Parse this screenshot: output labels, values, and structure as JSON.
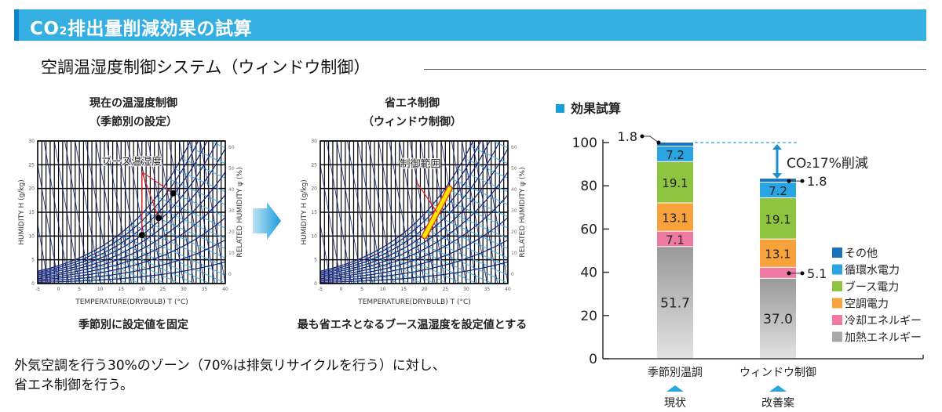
{
  "banner": {
    "title": "CO₂排出量削減効果の試算",
    "color": "#35afe2"
  },
  "subtitle": "空調温湿度制御システム（ウィンドウ制御）",
  "psychro_left": {
    "title_line1": "現在の温湿度制御",
    "title_line2": "（季節別の設定）",
    "annotation": "ブース温湿度",
    "caption": "季節別に設定値を固定",
    "xlabel": "TEMPERATURE(DRYBULB) T (°C)",
    "ylabel": "HUMIDITY H (g/kg)",
    "y2label": "RELATED HUMIDITY ψ (%)",
    "xticks": [
      "-5",
      "0",
      "5",
      "10",
      "15",
      "20",
      "25",
      "30",
      "35",
      "40"
    ],
    "yticks": [
      "0",
      "5",
      "10",
      "15",
      "20",
      "25",
      "30"
    ],
    "y2ticks": [
      "0",
      "10",
      "20",
      "30",
      "40",
      "50",
      "60"
    ],
    "points": [
      {
        "t": 20,
        "h": 10.2
      },
      {
        "t": 24,
        "h": 13.8
      },
      {
        "t": 27.5,
        "h": 19
      }
    ]
  },
  "psychro_right": {
    "title_line1": "省エネ制御",
    "title_line2": "（ウィンドウ制御）",
    "annotation": "制御範囲",
    "caption": "最も省エネとなるブース温湿度を設定値とする",
    "xlabel": "TEMPERATURE(DRYBULB) T (°C)",
    "ylabel": "HUMIDITY H (g/kg)",
    "y2label": "RELATED HUMIDITY ψ (%)",
    "range": [
      {
        "t": 20,
        "h": 10
      },
      {
        "t": 26,
        "h": 20
      }
    ]
  },
  "bottom_text": {
    "line1": "外気空調を行う30%のゾーン（70%は排気リサイクルを行う）に対し、",
    "line2": "省エネ制御を行う。"
  },
  "effect_header": "効果試算",
  "chart_data": {
    "type": "bar",
    "stacked": true,
    "categories": [
      "季節別温調",
      "ウィンドウ制御"
    ],
    "category_sublabels": [
      "現状",
      "改善案"
    ],
    "ylim": [
      0,
      100
    ],
    "yticks": [
      0,
      20,
      40,
      60,
      80,
      100
    ],
    "series": [
      {
        "name": "加熱エネルギー",
        "values": [
          51.7,
          37.0
        ],
        "color": "#a8a8a8"
      },
      {
        "name": "冷却エネルギー",
        "values": [
          7.1,
          5.1
        ],
        "color": "#ee7aa3"
      },
      {
        "name": "空調電力",
        "values": [
          13.1,
          13.1
        ],
        "color": "#f8a23c"
      },
      {
        "name": "ブース電力",
        "values": [
          19.1,
          19.1
        ],
        "color": "#8dc540"
      },
      {
        "name": "循環水電力",
        "values": [
          7.2,
          7.2
        ],
        "color": "#2aa5e2"
      },
      {
        "name": "その他",
        "values": [
          1.8,
          1.8
        ],
        "color": "#1a72b8"
      }
    ],
    "annotation": "CO₂17%削減",
    "legend_position": "right"
  }
}
